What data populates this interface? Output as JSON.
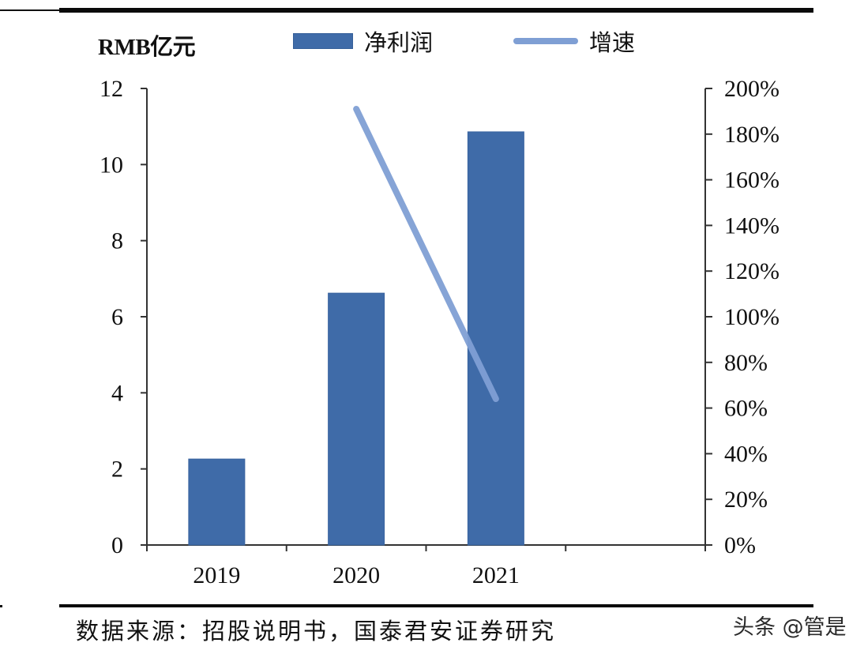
{
  "chart_data": {
    "type": "bar+line",
    "title": "",
    "unit_label": "RMB亿元",
    "categories": [
      "2019",
      "2020",
      "2021",
      ""
    ],
    "series": [
      {
        "name": "净利润",
        "type": "bar",
        "axis": "left",
        "color": "#3f6ba8",
        "values": [
          2.26,
          6.62,
          10.86,
          null
        ]
      },
      {
        "name": "增速",
        "type": "line",
        "axis": "right",
        "color": "#7f9fd4",
        "values": [
          null,
          1.91,
          0.64,
          null
        ]
      }
    ],
    "y_left": {
      "min": 0,
      "max": 12,
      "step": 2,
      "ticks": [
        "0",
        "2",
        "4",
        "6",
        "8",
        "10",
        "12"
      ]
    },
    "y_right": {
      "min": 0,
      "max": 2.0,
      "step": 0.2,
      "ticks": [
        "0%",
        "20%",
        "40%",
        "60%",
        "80%",
        "100%",
        "120%",
        "140%",
        "160%",
        "180%",
        "200%"
      ]
    },
    "xlabel": "",
    "ylabel": "RMB亿元",
    "grid": false,
    "legend_position": "top"
  },
  "legend": {
    "bar_label": "净利润",
    "line_label": "增速"
  },
  "source": "数据来源：招股说明书，国泰君安证券研究",
  "watermark": "头条 @管是",
  "colors": {
    "bar": "#3f6ba8",
    "line": "#7f9fd4",
    "axis": "#333333",
    "rule": "#0a0a0a"
  }
}
